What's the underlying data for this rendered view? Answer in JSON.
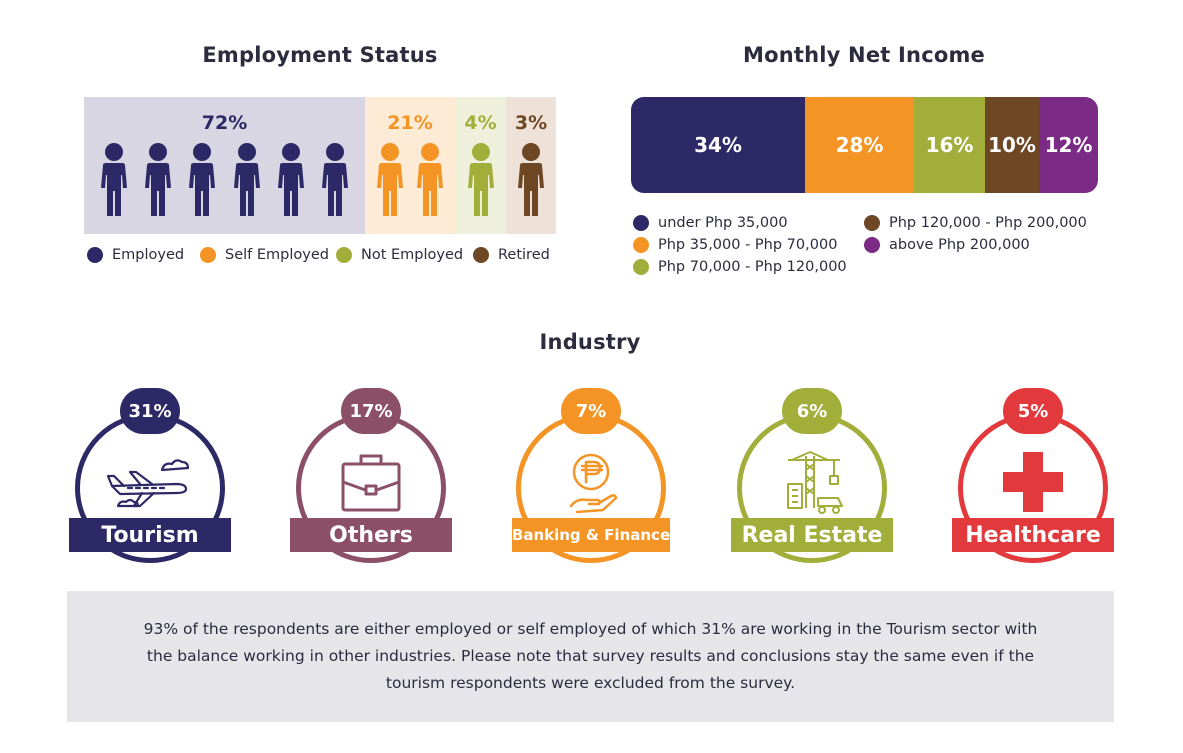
{
  "employment": {
    "title": "Employment Status",
    "legend": [
      {
        "label": "Employed",
        "color": "#2d2966"
      },
      {
        "label": "Self Employed",
        "color": "#f39425"
      },
      {
        "label": "Not Employed",
        "color": "#a2ae3a"
      },
      {
        "label": "Retired",
        "color": "#6e4724"
      }
    ]
  },
  "income": {
    "title": "Monthly Net Income",
    "legend_col1": [
      {
        "label": "under Php 35,000",
        "color": "#2d2966"
      },
      {
        "label": "Php 35,000 - Php 70,000",
        "color": "#f39425"
      },
      {
        "label": "Php 70,000 - Php 120,000",
        "color": "#a2ae3a"
      }
    ],
    "legend_col2": [
      {
        "label": "Php 120,000 - Php 200,000",
        "color": "#6e4724"
      },
      {
        "label": "above Php 200,000",
        "color": "#7b2b85"
      }
    ]
  },
  "industry": {
    "title": "Industry",
    "items": [
      {
        "label": "Tourism",
        "pct": "31%",
        "color": "#2d2966",
        "icon": "airplane-icon"
      },
      {
        "label": "Others",
        "pct": "17%",
        "color": "#8b5068",
        "icon": "briefcase-icon"
      },
      {
        "label": "Banking & Finance",
        "pct": "7%",
        "color": "#f39425",
        "icon": "peso-hand-icon"
      },
      {
        "label": "Real Estate",
        "pct": "6%",
        "color": "#a2ae3a",
        "icon": "construction-icon"
      },
      {
        "label": "Healthcare",
        "pct": "5%",
        "color": "#e2393d",
        "icon": "medical-cross-icon"
      }
    ]
  },
  "note": {
    "text": "93% of the respondents are either employed or self employed of which 31% are working in the Tourism sector with the balance working in other industries. Please note that survey results and conclusions stay the same even if the tourism respondents were excluded from the survey."
  },
  "chart_data": [
    {
      "type": "bar",
      "title": "Employment Status",
      "categories": [
        "Employed",
        "Self Employed",
        "Not Employed",
        "Retired"
      ],
      "values": [
        72,
        21,
        4,
        3
      ],
      "labels": [
        "72%",
        "21%",
        "4%",
        "3%"
      ],
      "icon_counts": [
        6,
        2,
        1,
        1
      ],
      "colors": [
        "#2d2966",
        "#f39425",
        "#a2ae3a",
        "#6e4724"
      ],
      "bg_colors": [
        "#d7d6e2",
        "#fdebd5",
        "#eef0dc",
        "#eee2d8"
      ],
      "legend": "bottom"
    },
    {
      "type": "bar",
      "title": "Monthly Net Income",
      "categories": [
        "under Php 35,000",
        "Php 35,000 - Php 70,000",
        "Php 70,000 - Php 120,000",
        "Php 120,000 - Php 200,000",
        "above Php 200,000"
      ],
      "values": [
        34,
        28,
        16,
        10,
        12
      ],
      "labels": [
        "34%",
        "28%",
        "16%",
        "10%",
        "12%"
      ],
      "colors": [
        "#2d2966",
        "#f39425",
        "#a2ae3a",
        "#6e4724",
        "#7b2b85"
      ],
      "legend": "bottom"
    },
    {
      "type": "bar",
      "title": "Industry",
      "categories": [
        "Tourism",
        "Others",
        "Banking & Finance",
        "Real Estate",
        "Healthcare"
      ],
      "values": [
        31,
        17,
        7,
        6,
        5
      ],
      "labels": [
        "31%",
        "17%",
        "7%",
        "6%",
        "5%"
      ]
    }
  ]
}
